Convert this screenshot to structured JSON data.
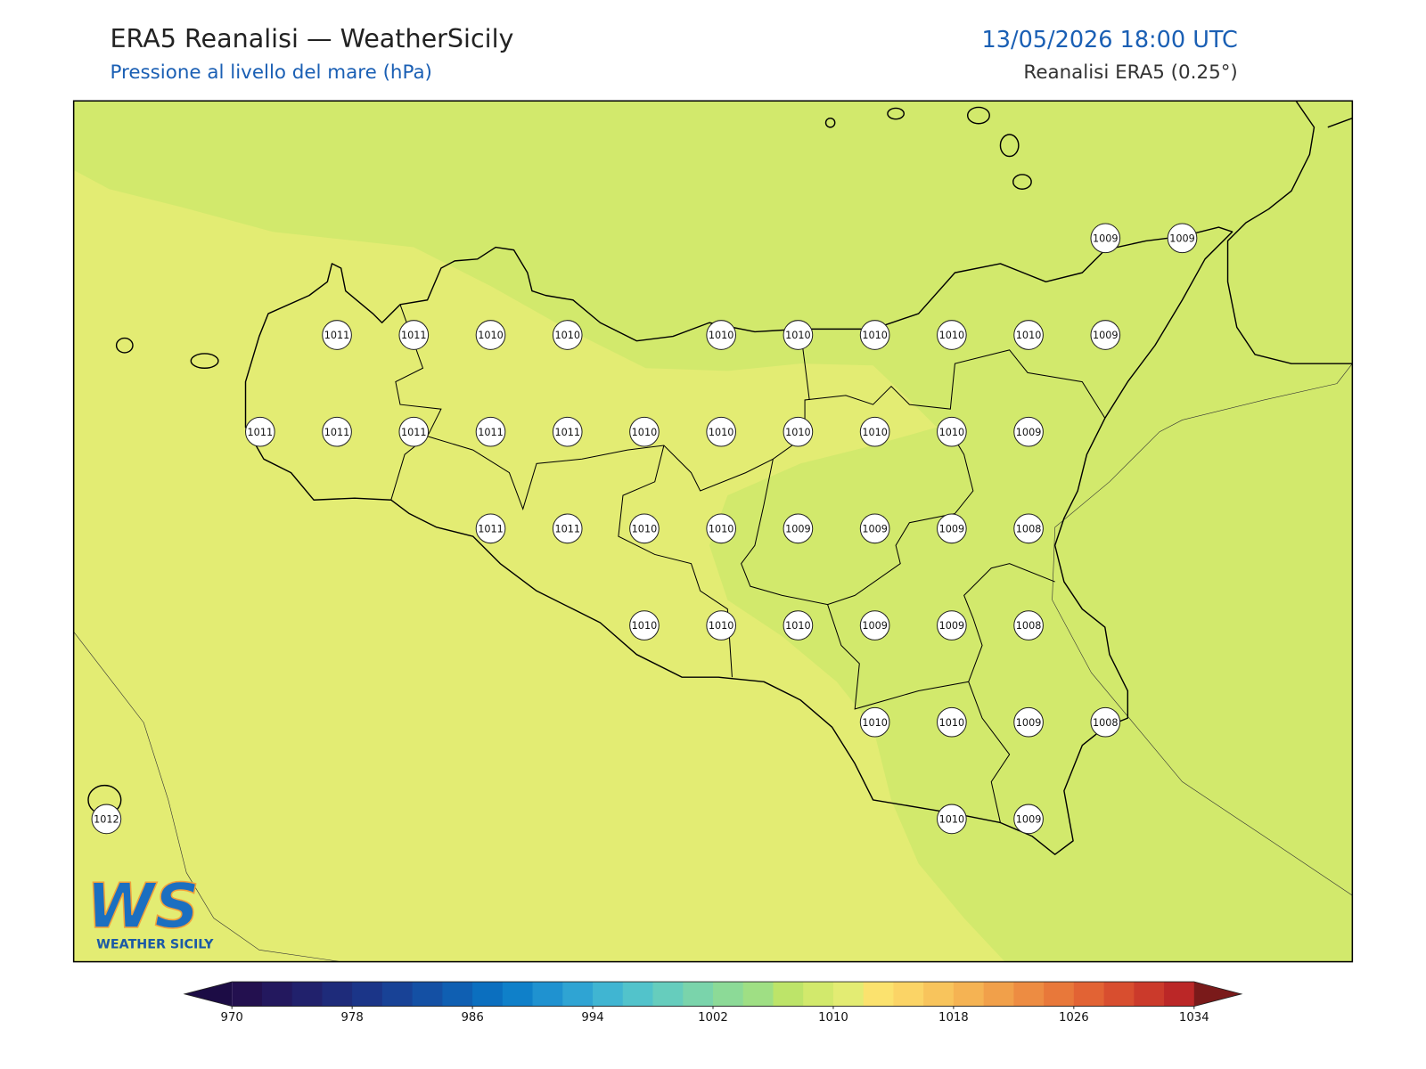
{
  "header": {
    "title": "ERA5 Reanalisi — WeatherSicily",
    "subtitle": "Pressione al livello del mare (hPa)",
    "datetime": "13/05/2026 18:00 UTC",
    "source": "Reanalisi ERA5 (0.25°)"
  },
  "map": {
    "stations": [
      [
        null,
        null,
        null,
        null,
        null,
        null,
        null,
        null,
        null,
        null,
        null,
        null,
        null,
        1009,
        1009
      ],
      [
        null,
        null,
        null,
        1011,
        1011,
        1010,
        1010,
        null,
        1010,
        1010,
        1010,
        1010,
        1010,
        1009,
        null
      ],
      [
        null,
        null,
        1011,
        1011,
        1011,
        1011,
        1011,
        1010,
        1010,
        1010,
        1010,
        1010,
        1009,
        null,
        null
      ],
      [
        null,
        null,
        null,
        null,
        null,
        1011,
        1011,
        1010,
        1010,
        1009,
        1009,
        1009,
        1008,
        null,
        null
      ],
      [
        null,
        null,
        null,
        null,
        null,
        null,
        null,
        1010,
        1010,
        1010,
        1009,
        1009,
        1008,
        null,
        null
      ],
      [
        null,
        null,
        null,
        null,
        null,
        null,
        null,
        null,
        null,
        null,
        1010,
        1010,
        1009,
        1008,
        null
      ],
      [
        1012,
        null,
        null,
        null,
        null,
        null,
        null,
        null,
        null,
        null,
        null,
        1010,
        1009,
        null,
        null
      ]
    ],
    "logo": {
      "text": "WS",
      "caption": "WEATHER SICILY"
    },
    "colorbar": {
      "levels": [
        970,
        972,
        974,
        976,
        978,
        980,
        982,
        984,
        986,
        988,
        990,
        992,
        994,
        996,
        998,
        1000,
        1002,
        1004,
        1006,
        1008,
        1010,
        1012,
        1014,
        1016,
        1018,
        1020,
        1022,
        1024,
        1026,
        1028,
        1030,
        1032,
        1034
      ],
      "colors": [
        "#23104f",
        "#23185e",
        "#21216c",
        "#1e2b7a",
        "#1b3588",
        "#184296",
        "#1450a4",
        "#0f5fb2",
        "#0b6fbf",
        "#0f80c9",
        "#1f92d0",
        "#2fa4d3",
        "#40b5d2",
        "#52c3cb",
        "#66cdbd",
        "#7ad4ab",
        "#8cda97",
        "#9fdf84",
        "#bde469",
        "#d2e96c",
        "#e3ec73",
        "#fbe26e",
        "#fbd466",
        "#f8c45c",
        "#f5b353",
        "#f1a04a",
        "#ed8c42",
        "#e8783a",
        "#e26334",
        "#d84e2f",
        "#cb3a2b",
        "#bb2727"
      ],
      "under_color": "#1c0c45",
      "over_color": "#7a1a1a",
      "ticks": [
        970,
        978,
        986,
        994,
        1002,
        1010,
        1018,
        1026,
        1034
      ]
    }
  }
}
